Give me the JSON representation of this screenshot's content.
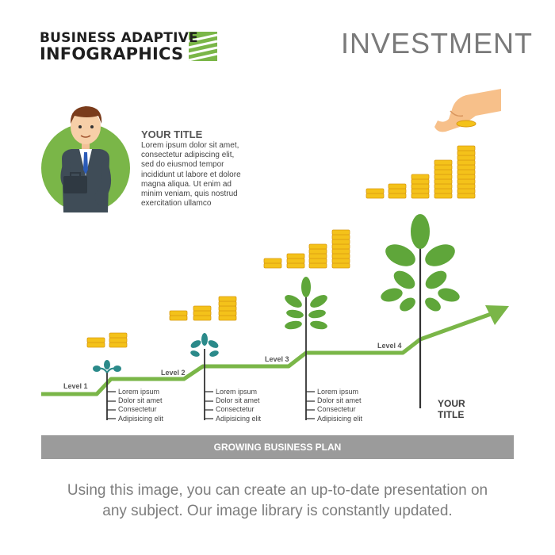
{
  "header": {
    "brand_line1": "BUSINESS ADAPTIVE",
    "brand_line2": "INFOGRAPHICS",
    "heading": "INVESTMENT"
  },
  "intro": {
    "title": "YOUR TITLE",
    "lines": [
      "Lorem ipsum dolor sit amet,",
      "consectetur adipiscing elit,",
      "sed do eiusmod tempor",
      "incididunt ut labore et dolore",
      "magna aliqua. Ut enim ad",
      "minim veniam, quis nostrud",
      "exercitation ullamco"
    ]
  },
  "levels": [
    {
      "label": "Level 1",
      "items": [
        "Lorem ipsum",
        "Dolor sit amet",
        "Consectetur",
        "Adipisicing elit"
      ]
    },
    {
      "label": "Level 2",
      "items": [
        "Lorem ipsum",
        "Dolor sit amet",
        "Consectetur",
        "Adipisicing elit"
      ]
    },
    {
      "label": "Level 3",
      "items": [
        "Lorem ipsum",
        "Dolor sit amet",
        "Consectetur",
        "Adipisicing elit"
      ]
    },
    {
      "label": "Level 4"
    }
  ],
  "final_title": [
    "YOUR",
    "TITLE"
  ],
  "band_label": "GROWING BUSINESS PLAN",
  "caption": [
    "Using this image, you can create an up-to-date presentation on",
    "any subject. Our image library is constantly updated."
  ],
  "colors": {
    "green": "#7ab648",
    "leaf": "#5fa63a",
    "teal": "#2b8a8a",
    "coin": "#f4c21a",
    "coin_dark": "#d99a12",
    "band": "#9b9b9b"
  },
  "icons": [
    "stripes-logo-icon",
    "businessman-icon",
    "hand-icon",
    "coin-stack-icon",
    "sprout-icon",
    "tree-icon",
    "arrow-icon"
  ]
}
